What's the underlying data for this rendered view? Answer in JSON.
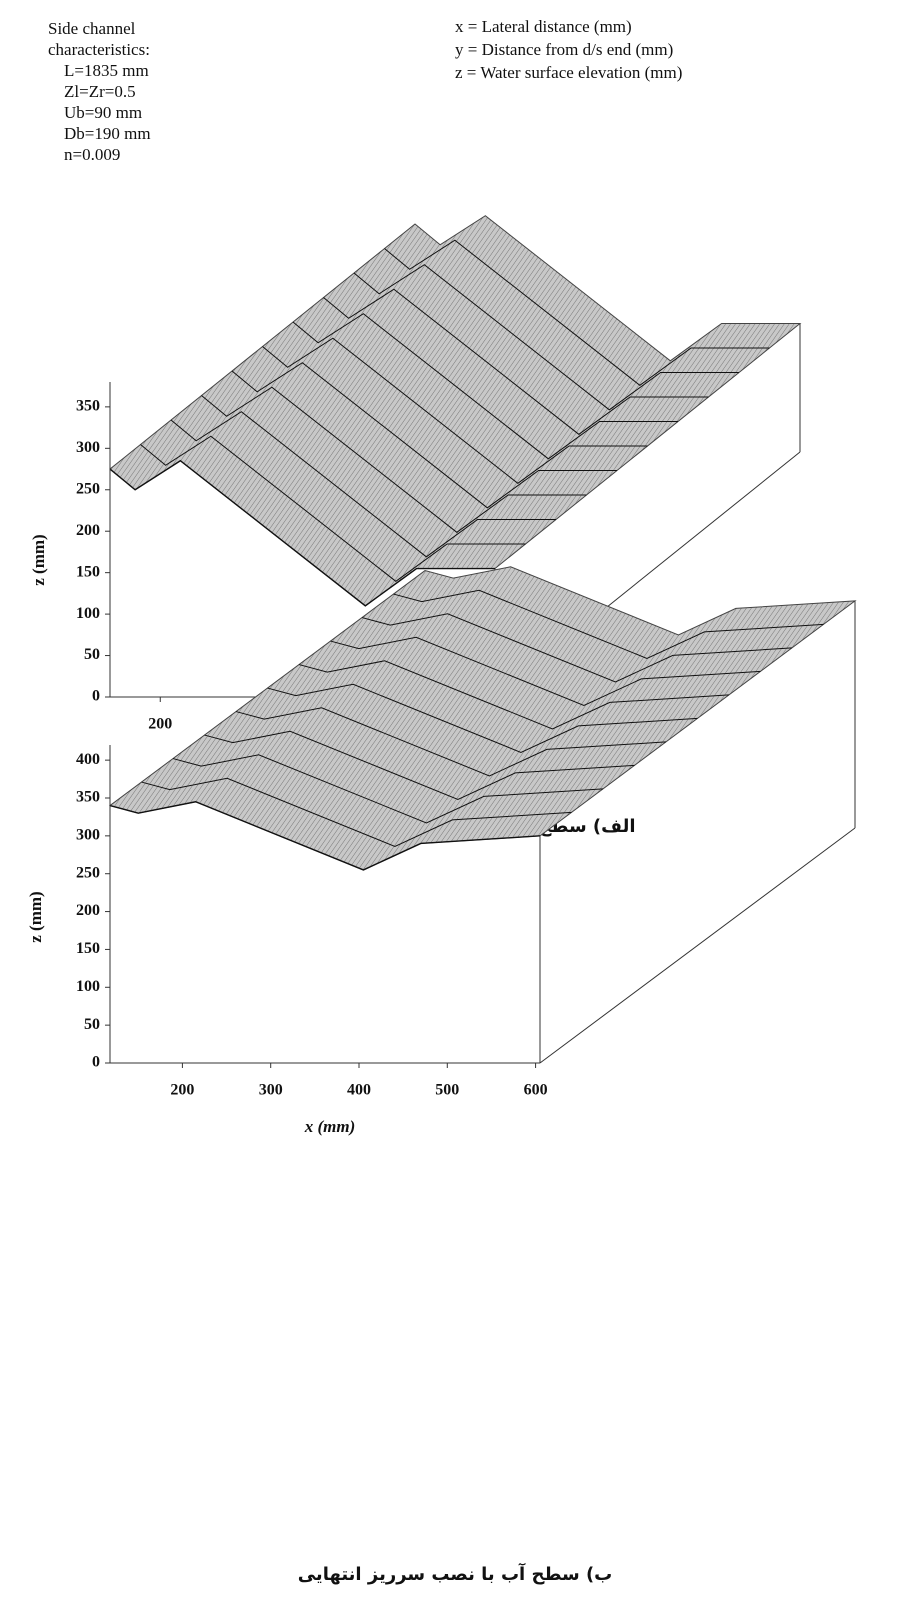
{
  "chart_data": [
    {
      "type": "surface",
      "annotations": [
        "Side channel",
        "characteristics:",
        "L=1835 mm",
        "Zl=Zr=0.5",
        "Ub=90 mm",
        "Db=190 mm",
        "n=0.009"
      ],
      "notes": [
        "x = Lateral distance (mm)",
        "y = Distance from d/s end (mm)",
        "z = Water surface elevation (mm)"
      ],
      "xlabel": "x (mm)",
      "ylabel": "z (mm)",
      "x": [
        150,
        175,
        220,
        404,
        455,
        533
      ],
      "values": [
        275,
        250,
        285,
        110,
        155,
        155
      ],
      "xlim": [
        150,
        533
      ],
      "xticks": [
        200,
        300,
        400,
        500
      ],
      "ylim": [
        0,
        380
      ],
      "yticks": [
        0,
        50,
        100,
        150,
        200,
        250,
        300,
        350
      ],
      "caption": "الف) سطح آب بدون نصب سرریز انتهایی"
    },
    {
      "type": "surface",
      "xlabel": "x (mm)",
      "ylabel": "z (mm)",
      "x": [
        118,
        150,
        215,
        405,
        470,
        605
      ],
      "values": [
        340,
        330,
        345,
        255,
        290,
        300
      ],
      "xlim": [
        118,
        605
      ],
      "xticks": [
        200,
        300,
        400,
        500,
        600
      ],
      "ylim": [
        0,
        420
      ],
      "yticks": [
        0,
        50,
        100,
        150,
        200,
        250,
        300,
        350,
        400
      ],
      "caption": "ب) سطح آب با نصب سرریز انتهایی"
    }
  ]
}
